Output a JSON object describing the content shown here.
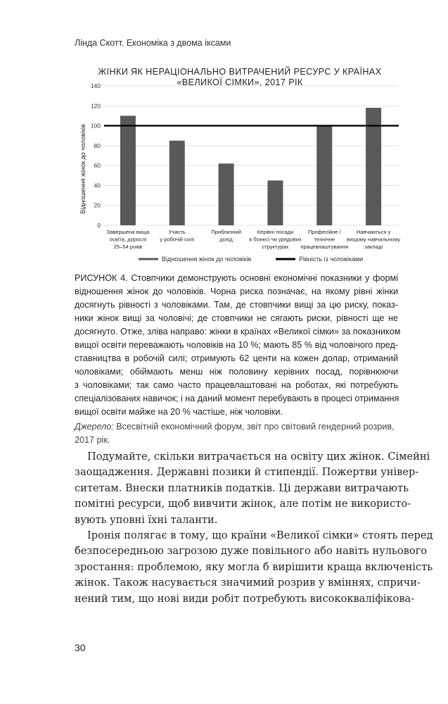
{
  "running_head": "Лінда Скотт. Економіка з двома іксами",
  "chart_data": {
    "type": "bar",
    "title_lines": [
      "ЖІНКИ ЯК НЕРАЦІОНАЛЬНО ВИТРАЧЕНИЙ РЕСУРС У КРАЇНАХ",
      "«ВЕЛИКОЇ СІМКИ», 2017 РІК"
    ],
    "ylabel": "Відношення жінок до чоловіків",
    "xlabel": "",
    "ylim": [
      0,
      140
    ],
    "yticks": [
      0,
      20,
      40,
      60,
      80,
      100,
      120,
      140
    ],
    "grid": true,
    "categories": [
      [
        "Завершена вища",
        "освіта, дорослі",
        "25–54 років"
      ],
      [
        "Участь",
        "у робочій силі"
      ],
      [
        "Приблизний",
        "дохід"
      ],
      [
        "Керівні посади",
        "в бізнесі чи урядових",
        "структурах"
      ],
      [
        "Професійне /",
        "технічне",
        "працевлаштування"
      ],
      [
        "Навчаються у",
        "вищому навчальному",
        "закладі"
      ]
    ],
    "series": [
      {
        "name": "Відношення жінок до чоловіків",
        "values": [
          110,
          85,
          62,
          45,
          100,
          118
        ],
        "color": "#58595b"
      }
    ],
    "reference_line": {
      "name": "Рівність із чоловіками",
      "value": 100,
      "color": "#000000"
    },
    "legend_position": "bottom"
  },
  "caption_lines": [
    "РИСУНОК 4. Стовпчики демонструють основні економічні показники у формі",
    "відношення жінок до чоловіків. Чорна риска позначає, на якому рівні жінки",
    "досягнуть рівності з чоловіками. Там, де стовпчики вищі за цю риску, показ-",
    "ники жінок вищі за чоловічі; де стовпчики не сягають риски, рівності ще не",
    "досягнуто. Отже, зліва направо: жінки в країнах «Великої сімки» за показником",
    "вищої освіти переважають чоловіків на 10 %; мають 85 % від чоловічого пред-",
    "ставництва в робочій силі; отримують 62 центи на кожен долар, отриманий",
    "чоловіками; обіймають менш ніж половину керівних посад, порівнюючи",
    "з чоловіками; так само часто працевлаштовані на роботах, які потребують",
    "спеціалізованих навичок; і на даний момент перебувають в процесі отримання",
    "вищої освіти майже на 20 % частіше, ніж чоловіки."
  ],
  "source": {
    "label": "Джерело:",
    "line1": " Всесвітній економічний форум, звіт про світовий гендерний розрив,",
    "line2": "2017 рік."
  },
  "body_lines": [
    "Подумайте, скільки витрачається на освіту цих жінок. Сімейні",
    "заощадження. Державні позики й стипендії. Пожертви універ-",
    "ситетам. Внески платників податків. Ці держави витрачають",
    "помітні ресурси, щоб вивчити жінок, але потім не використо-",
    "вують уповні їхні таланти.",
    "Іронія полягає в тому, що країни «Великої сімки» стоять перед",
    "безпосередньою загрозою дуже повільного або навіть нульового",
    "зростання: проблемою, яку могла б вирішити краща включеність",
    "жінок. Також насувається значимий розрив у вміннях, спричи-",
    "нений тим, що нові види робіт потребують висококваліфікова-"
  ],
  "page_number": "30"
}
